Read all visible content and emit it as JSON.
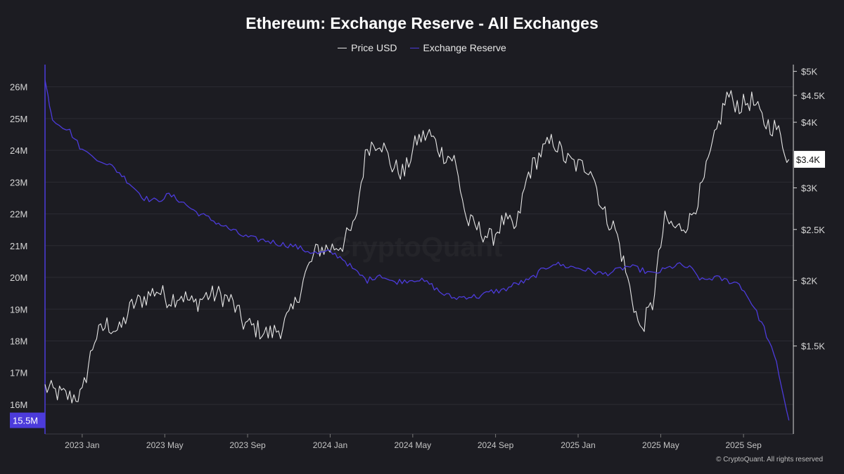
{
  "chart_data": {
    "type": "line",
    "title": "Ethereum: Exchange Reserve - All Exchanges",
    "legend_position": "top-center",
    "x_ticks": [
      "2023 Jan",
      "2023 May",
      "2023 Sep",
      "2024 Jan",
      "2024 May",
      "2024 Sep",
      "2025 Jan",
      "2025 May",
      "2025 Sep"
    ],
    "y_left": {
      "ticks": [
        16,
        17,
        18,
        19,
        20,
        21,
        22,
        23,
        24,
        25,
        26
      ],
      "tick_labels": [
        "16M",
        "17M",
        "18M",
        "19M",
        "20M",
        "21M",
        "22M",
        "23M",
        "24M",
        "25M",
        "26M"
      ],
      "range": [
        15.07,
        26.7
      ],
      "current_label": "15.5M",
      "current_value": 15.5
    },
    "y_right": {
      "scale": "log",
      "ticks": [
        1500,
        2000,
        2500,
        3000,
        4000,
        4500,
        5000
      ],
      "tick_labels": [
        "$1.5K",
        "$2K",
        "$2.5K",
        "$3K",
        "$4K",
        "$4.5K",
        "$5K"
      ],
      "range": [
        1020,
        5150
      ],
      "current_label": "$3.4K",
      "current_value": 3400
    },
    "series": [
      {
        "name": "Price USD",
        "color": "#e6e6e6",
        "axis": "right",
        "t": [
          2022.85,
          2022.9,
          2022.95,
          2023.0,
          2023.05,
          2023.1,
          2023.15,
          2023.2,
          2023.25,
          2023.3,
          2023.35,
          2023.4,
          2023.45,
          2023.5,
          2023.55,
          2023.6,
          2023.65,
          2023.7,
          2023.75,
          2023.8,
          2023.85,
          2023.9,
          2023.95,
          2024.0,
          2024.05,
          2024.1,
          2024.15,
          2024.2,
          2024.25,
          2024.3,
          2024.35,
          2024.4,
          2024.45,
          2024.5,
          2024.55,
          2024.6,
          2024.65,
          2024.7,
          2024.75,
          2024.8,
          2024.85,
          2024.9,
          2024.95,
          2025.0,
          2025.05,
          2025.1,
          2025.15,
          2025.2,
          2025.25,
          2025.3,
          2025.35,
          2025.4,
          2025.45,
          2025.5,
          2025.55,
          2025.6,
          2025.65,
          2025.7,
          2025.75,
          2025.8,
          2025.85
        ],
        "values": [
          1250,
          1220,
          1200,
          1210,
          1550,
          1650,
          1600,
          1790,
          1850,
          1920,
          1840,
          1880,
          1800,
          1870,
          1880,
          1830,
          1660,
          1620,
          1580,
          1620,
          1750,
          2050,
          2300,
          2300,
          2350,
          2550,
          3600,
          3700,
          3300,
          3200,
          3700,
          3800,
          3500,
          3400,
          2600,
          2500,
          2400,
          2600,
          2500,
          3200,
          3500,
          3700,
          3400,
          3300,
          3300,
          2700,
          2500,
          2000,
          1600,
          1800,
          2600,
          2500,
          2600,
          3000,
          3700,
          4500,
          4300,
          4400,
          4000,
          3900,
          3400
        ]
      },
      {
        "name": "Exchange Reserve",
        "color": "#4c3bdb",
        "axis": "left",
        "t": [
          2022.85,
          2022.88,
          2022.95,
          2023.0,
          2023.1,
          2023.15,
          2023.2,
          2023.25,
          2023.3,
          2023.35,
          2023.4,
          2023.45,
          2023.5,
          2023.55,
          2023.6,
          2023.65,
          2023.7,
          2023.75,
          2023.8,
          2023.85,
          2023.9,
          2023.95,
          2024.0,
          2024.05,
          2024.1,
          2024.15,
          2024.2,
          2024.25,
          2024.3,
          2024.35,
          2024.4,
          2024.45,
          2024.5,
          2024.55,
          2024.6,
          2024.65,
          2024.7,
          2024.75,
          2024.8,
          2024.85,
          2024.9,
          2024.95,
          2025.0,
          2025.05,
          2025.1,
          2025.15,
          2025.2,
          2025.25,
          2025.3,
          2025.35,
          2025.4,
          2025.45,
          2025.5,
          2025.55,
          2025.6,
          2025.65,
          2025.7,
          2025.75,
          2025.8,
          2025.85
        ],
        "values": [
          26.2,
          25.0,
          24.6,
          24.0,
          23.6,
          23.3,
          22.9,
          22.5,
          22.4,
          22.6,
          22.4,
          22.1,
          21.9,
          21.7,
          21.5,
          21.3,
          21.2,
          21.15,
          21.05,
          21.0,
          20.85,
          20.75,
          20.8,
          20.6,
          20.2,
          19.9,
          20.1,
          19.85,
          19.9,
          19.95,
          19.8,
          19.5,
          19.35,
          19.4,
          19.4,
          19.55,
          19.6,
          19.8,
          19.9,
          20.2,
          20.45,
          20.35,
          20.3,
          20.2,
          20.1,
          20.2,
          20.35,
          20.25,
          20.1,
          20.25,
          20.4,
          20.3,
          19.9,
          20.0,
          19.9,
          19.8,
          19.2,
          18.4,
          17.3,
          15.5
        ]
      }
    ]
  },
  "footer": "© CryptoQuant. All rights reserved",
  "watermark": "CryptoQuant"
}
